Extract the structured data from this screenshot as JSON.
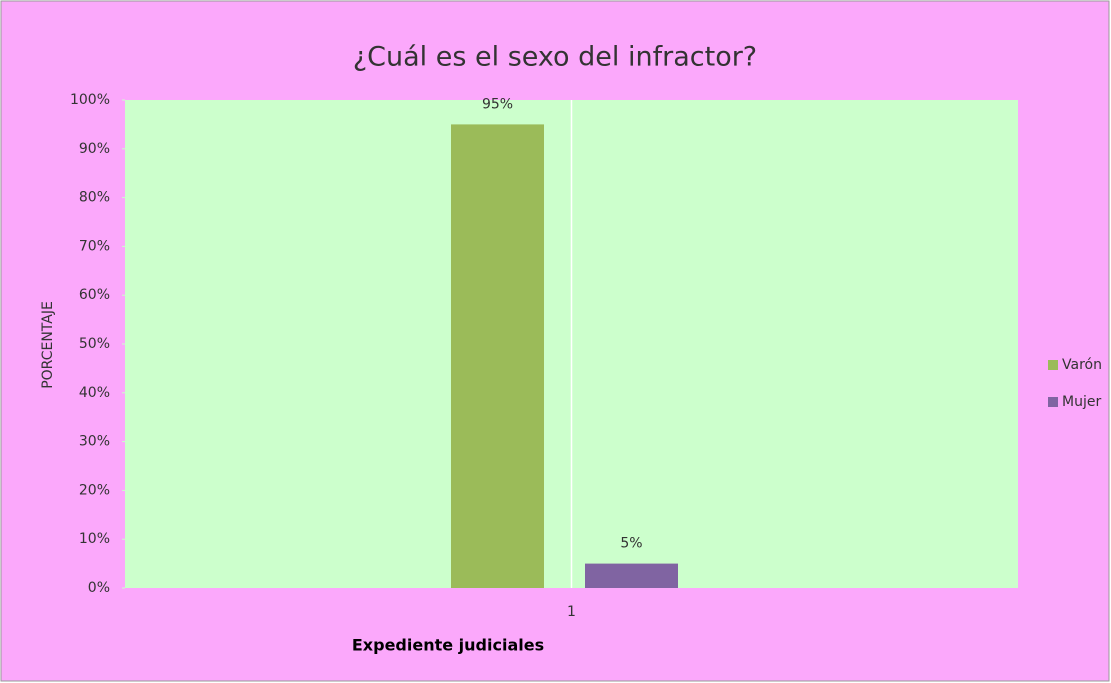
{
  "chart_data": {
    "type": "bar",
    "title": "¿Cuál es el sexo del infractor?",
    "x_label": "Expediente judiciales",
    "y_label": "PORCENTAJE",
    "categories": [
      "1"
    ],
    "series": [
      {
        "name": "Varón",
        "color": "#9bbb59",
        "values": [
          95
        ],
        "value_labels": [
          "95%"
        ]
      },
      {
        "name": "Mujer",
        "color": "#8064a2",
        "values": [
          5
        ],
        "value_labels": [
          "5%"
        ]
      }
    ],
    "ylim": [
      0,
      100
    ],
    "yticks": [
      {
        "value": 0,
        "label": "0%"
      },
      {
        "value": 10,
        "label": "10%"
      },
      {
        "value": 20,
        "label": "20%"
      },
      {
        "value": 30,
        "label": "30%"
      },
      {
        "value": 40,
        "label": "40%"
      },
      {
        "value": 50,
        "label": "50%"
      },
      {
        "value": 60,
        "label": "60%"
      },
      {
        "value": 70,
        "label": "70%"
      },
      {
        "value": 80,
        "label": "80%"
      },
      {
        "value": 90,
        "label": "90%"
      },
      {
        "value": 100,
        "label": "100%"
      }
    ],
    "legend": "right"
  }
}
